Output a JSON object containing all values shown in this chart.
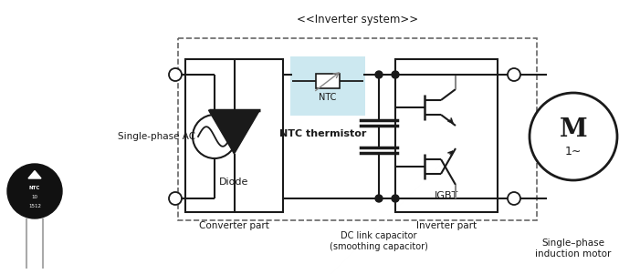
{
  "title": "<<Inverter system>>",
  "bg_color": "#ffffff",
  "colors": {
    "black": "#1a1a1a",
    "gray": "#888888",
    "ntc_bg": "#cce8f0",
    "dashed": "#666666"
  },
  "labels": {
    "single_phase_ac": "Single-phase AC",
    "converter_part": "Converter part",
    "diode": "Diode",
    "ntc": "NTC",
    "ntc_thermistor": "NTC thermistor",
    "dc_link": "DC link capacitor\n(smoothing capacitor)",
    "inverter_part": "Inverter part",
    "igbt": "IGBT",
    "motor_label": "Single–phase\ninduction motor",
    "motor_symbol": "M",
    "motor_sub": "1∼"
  }
}
